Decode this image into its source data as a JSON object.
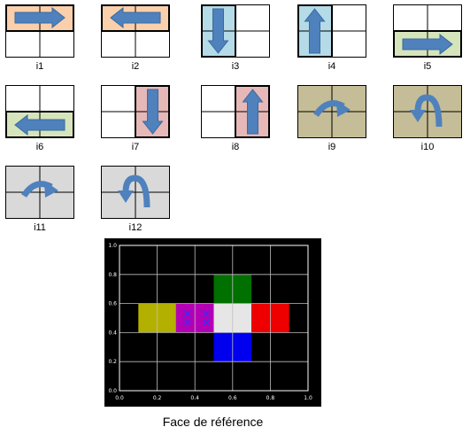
{
  "tiles": [
    {
      "label": "i1",
      "shade": "top",
      "fill": "#f9cfac",
      "symbol": "arrow-right-icon"
    },
    {
      "label": "i2",
      "shade": "top",
      "fill": "#f9cfac",
      "symbol": "arrow-left-icon"
    },
    {
      "label": "i3",
      "shade": "left",
      "fill": "#b4dbe7",
      "symbol": "arrow-down-icon"
    },
    {
      "label": "i4",
      "shade": "left",
      "fill": "#b4dbe7",
      "symbol": "arrow-up-icon"
    },
    {
      "label": "i5",
      "shade": "bottom",
      "fill": "#d6e4bc",
      "symbol": "arrow-right-icon"
    },
    {
      "label": "i6",
      "shade": "bottom",
      "fill": "#d6e4bc",
      "symbol": "arrow-left-icon"
    },
    {
      "label": "i7",
      "shade": "right",
      "fill": "#e6b8b8",
      "symbol": "arrow-down-icon"
    },
    {
      "label": "i8",
      "shade": "right",
      "fill": "#e6b8b8",
      "symbol": "arrow-up-icon"
    },
    {
      "label": "i9",
      "shade": "all",
      "fill": "#c4bd97",
      "symbol": "curved-arrow-clockwise-icon"
    },
    {
      "label": "i10",
      "shade": "all",
      "fill": "#c4bd97",
      "symbol": "curved-arrow-counterclockwise-icon"
    },
    {
      "label": "i11",
      "shade": "all",
      "fill": "#d9d9d9",
      "symbol": "curved-arrow-clockwise-icon"
    },
    {
      "label": "i12",
      "shade": "all",
      "fill": "#d9d9d9",
      "symbol": "curved-arrow-counterclockwise-icon"
    }
  ],
  "arrow_color": "#4f81bd",
  "caption": "Face de référence",
  "chart_data": {
    "type": "heatmap",
    "xlim": [
      0,
      1
    ],
    "ylim": [
      0,
      1
    ],
    "xticks": [
      "0.0",
      "0.2",
      "0.4",
      "0.6",
      "0.8",
      "1.0"
    ],
    "yticks": [
      "0.0",
      "0.2",
      "0.4",
      "0.6",
      "0.8",
      "1.0"
    ],
    "grid": true,
    "background": "#000000",
    "cells": [
      {
        "x": [
          0.1,
          0.3
        ],
        "y": [
          0.4,
          0.6
        ],
        "color": "#b4b000"
      },
      {
        "x": [
          0.3,
          0.5
        ],
        "y": [
          0.4,
          0.6
        ],
        "color": "#b400b4"
      },
      {
        "x": [
          0.5,
          0.7
        ],
        "y": [
          0.4,
          0.6
        ],
        "color": "#e6e6e6"
      },
      {
        "x": [
          0.7,
          0.9
        ],
        "y": [
          0.4,
          0.6
        ],
        "color": "#ee0000"
      },
      {
        "x": [
          0.5,
          0.7
        ],
        "y": [
          0.6,
          0.8
        ],
        "color": "#007000"
      },
      {
        "x": [
          0.5,
          0.7
        ],
        "y": [
          0.2,
          0.4
        ],
        "color": "#0000ee"
      }
    ],
    "markers": [
      {
        "x": 0.36,
        "y": 0.53
      },
      {
        "x": 0.36,
        "y": 0.47
      },
      {
        "x": 0.46,
        "y": 0.53
      },
      {
        "x": 0.46,
        "y": 0.47
      }
    ],
    "marker_color": "#3030ff"
  }
}
